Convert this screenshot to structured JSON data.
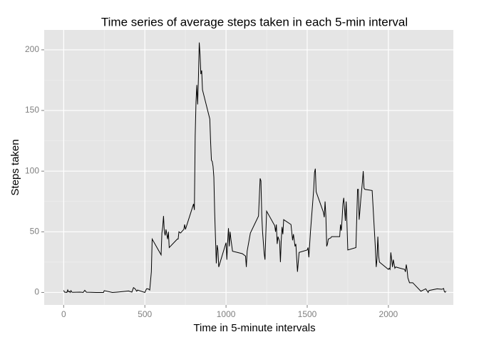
{
  "chart_data": {
    "type": "line",
    "title": "Time series of average steps taken in each 5-min interval",
    "x_label": "Time in 5-minute intervals",
    "y_label": "Steps taken",
    "color": "#000000",
    "grid": true,
    "xlim": [
      -120,
      2400
    ],
    "ylim": [
      -10.3,
      216.4
    ],
    "xticks": [
      0,
      500,
      1000,
      1500,
      2000
    ],
    "yticks": [
      0,
      50,
      100,
      150,
      200
    ],
    "x": [
      0,
      5,
      10,
      15,
      20,
      25,
      30,
      35,
      40,
      45,
      50,
      55,
      100,
      110,
      120,
      130,
      140,
      200,
      230,
      245,
      250,
      300,
      330,
      400,
      420,
      430,
      440,
      450,
      455,
      500,
      510,
      520,
      530,
      540,
      545,
      600,
      605,
      610,
      615,
      620,
      625,
      630,
      640,
      645,
      650,
      700,
      705,
      710,
      720,
      740,
      745,
      750,
      800,
      805,
      810,
      815,
      820,
      825,
      830,
      835,
      840,
      845,
      850,
      855,
      900,
      905,
      910,
      915,
      920,
      925,
      930,
      935,
      940,
      945,
      950,
      955,
      1000,
      1005,
      1010,
      1015,
      1020,
      1025,
      1030,
      1040,
      1100,
      1120,
      1125,
      1130,
      1150,
      1200,
      1210,
      1215,
      1220,
      1225,
      1235,
      1240,
      1245,
      1250,
      1300,
      1305,
      1310,
      1315,
      1320,
      1330,
      1335,
      1340,
      1345,
      1350,
      1355,
      1400,
      1410,
      1415,
      1425,
      1430,
      1440,
      1450,
      1500,
      1505,
      1510,
      1520,
      1540,
      1545,
      1550,
      1555,
      1600,
      1605,
      1610,
      1615,
      1620,
      1625,
      1630,
      1645,
      1650,
      1700,
      1705,
      1710,
      1715,
      1720,
      1725,
      1730,
      1735,
      1740,
      1745,
      1750,
      1800,
      1810,
      1815,
      1820,
      1825,
      1830,
      1840,
      1845,
      1850,
      1855,
      1900,
      1920,
      1925,
      1930,
      1935,
      1940,
      1945,
      2000,
      2005,
      2010,
      2015,
      2020,
      2025,
      2030,
      2040,
      2045,
      2100,
      2105,
      2110,
      2115,
      2120,
      2130,
      2140,
      2150,
      2200,
      2230,
      2245,
      2250,
      2300,
      2330,
      2340,
      2345,
      2350,
      2355
    ],
    "values": [
      1.7,
      0.3,
      0.1,
      0.2,
      0,
      2.1,
      0.5,
      0.9,
      0,
      1.5,
      0.3,
      0.1,
      0.3,
      0.2,
      0,
      1.8,
      0.2,
      0,
      0,
      0,
      1.5,
      0,
      0.3,
      1.2,
      0.3,
      4,
      3,
      1,
      2,
      0,
      3,
      3,
      2,
      17,
      44,
      31,
      49,
      54,
      63,
      50,
      47,
      52,
      44,
      50,
      37,
      44,
      44,
      50,
      49,
      52,
      56,
      52,
      73,
      68,
      129,
      157,
      171,
      155,
      177,
      206,
      196,
      180,
      183,
      167,
      143,
      124,
      109,
      108,
      104,
      95,
      66,
      45,
      24,
      39,
      35,
      21,
      41,
      27,
      42,
      53,
      38,
      50,
      44,
      34,
      32,
      30,
      21,
      34,
      49,
      63,
      94,
      92,
      64,
      50,
      32,
      27,
      48,
      67,
      55,
      50,
      56,
      40,
      46,
      42,
      25,
      43,
      54,
      48,
      60,
      56,
      43,
      48,
      38,
      40,
      17,
      33,
      35,
      37,
      29,
      50,
      85,
      99,
      102,
      83,
      66,
      62,
      75,
      63,
      38,
      40,
      44,
      45,
      46,
      46,
      56,
      51,
      61,
      73,
      78,
      69,
      59,
      75,
      56,
      35,
      37,
      85,
      85,
      60,
      68,
      77,
      91,
      100,
      86,
      85,
      84,
      36,
      21,
      28,
      46,
      30,
      25,
      19,
      20,
      19,
      33,
      27,
      21,
      27,
      20,
      21,
      19,
      17,
      23,
      19,
      12,
      8,
      8,
      8,
      1,
      3,
      0,
      1.6,
      3,
      2.6,
      3.3,
      0.6,
      0.2,
      1.1
    ]
  }
}
